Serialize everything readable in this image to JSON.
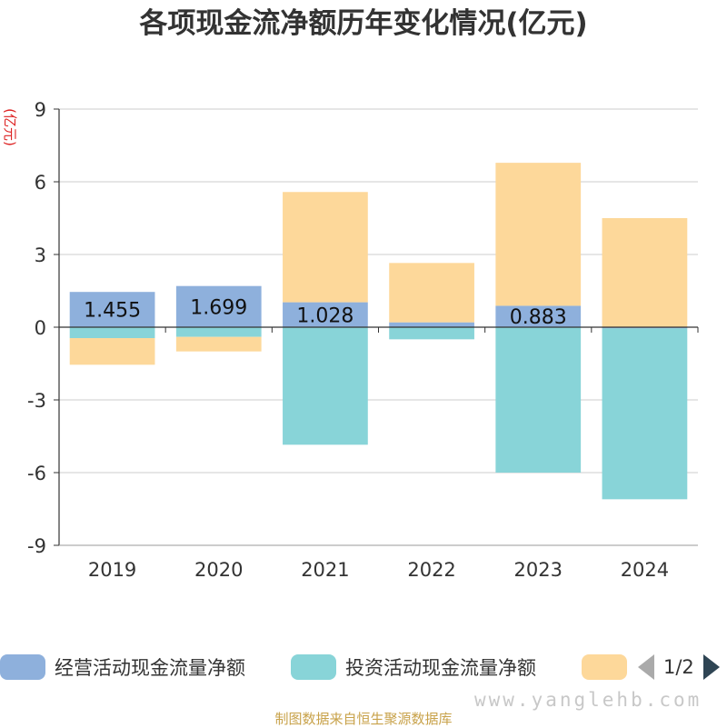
{
  "chart_data": {
    "type": "bar",
    "stacked": true,
    "title": "各项现金流净额历年变化情况(亿元)",
    "ylabel": "(亿元)",
    "ylim": [
      -9,
      9
    ],
    "yticks": [
      9,
      6,
      3,
      0,
      -3,
      -6,
      -9
    ],
    "grid": true,
    "categories": [
      "2019",
      "2020",
      "2021",
      "2022",
      "2023",
      "2024"
    ],
    "series": [
      {
        "name": "经营活动现金流量净额",
        "color": "#8eb0dc",
        "values": [
          1.455,
          1.699,
          1.028,
          0.2,
          0.883,
          -0.05
        ]
      },
      {
        "name": "投资活动现金流量净额",
        "color": "#88d4d8",
        "values": [
          -0.45,
          -0.4,
          -4.85,
          -0.5,
          -6.0,
          -7.05
        ]
      },
      {
        "name": "",
        "color": "#fdd89a",
        "values": [
          -1.1,
          -0.6,
          4.55,
          2.45,
          5.9,
          4.5
        ]
      }
    ],
    "data_labels": [
      "1.455",
      "1.699",
      "1.028",
      "",
      "0.883",
      ""
    ],
    "legend_position": "bottom"
  },
  "legend": {
    "pager_text": "1/2"
  },
  "watermark": "www.yanglehb.com",
  "source": "制图数据来自恒生聚源数据库"
}
